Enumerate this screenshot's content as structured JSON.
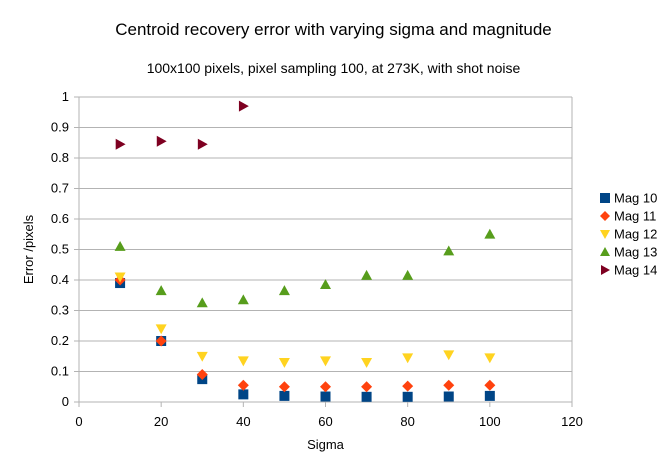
{
  "chart_data": {
    "type": "scatter",
    "title": "Centroid recovery error with varying sigma and magnitude",
    "subtitle": "100x100 pixels, pixel sampling 100, at 273K, with shot noise",
    "xlabel": "Sigma",
    "ylabel": "Error /pixels",
    "xlim": [
      0,
      120
    ],
    "ylim": [
      0,
      1
    ],
    "x_ticks": [
      "0",
      "20",
      "40",
      "60",
      "80",
      "100",
      "120"
    ],
    "y_ticks": [
      "0",
      "0.1",
      "0.2",
      "0.3",
      "0.4",
      "0.5",
      "0.6",
      "0.7",
      "0.8",
      "0.9",
      "1"
    ],
    "grid": "horizontal",
    "legend_position": "right",
    "series": [
      {
        "name": "Mag 10",
        "color": "#004586",
        "marker": "square",
        "x": [
          10,
          20,
          30,
          40,
          50,
          60,
          70,
          80,
          90,
          100
        ],
        "y": [
          0.39,
          0.2,
          0.075,
          0.025,
          0.02,
          0.018,
          0.017,
          0.017,
          0.018,
          0.02
        ]
      },
      {
        "name": "Mag 11",
        "color": "#ff420e",
        "marker": "diamond",
        "x": [
          10,
          20,
          30,
          40,
          50,
          60,
          70,
          80,
          90,
          100
        ],
        "y": [
          0.4,
          0.2,
          0.09,
          0.055,
          0.05,
          0.05,
          0.05,
          0.052,
          0.055,
          0.055
        ]
      },
      {
        "name": "Mag 12",
        "color": "#ffd320",
        "marker": "triangle-down",
        "x": [
          10,
          20,
          30,
          40,
          50,
          60,
          70,
          80,
          90,
          100
        ],
        "y": [
          0.41,
          0.24,
          0.15,
          0.135,
          0.13,
          0.135,
          0.13,
          0.145,
          0.155,
          0.145
        ]
      },
      {
        "name": "Mag 13",
        "color": "#579d1c",
        "marker": "triangle-up",
        "x": [
          10,
          20,
          30,
          40,
          50,
          60,
          70,
          80,
          90,
          100
        ],
        "y": [
          0.51,
          0.365,
          0.325,
          0.335,
          0.365,
          0.385,
          0.415,
          0.415,
          0.495,
          0.55
        ]
      },
      {
        "name": "Mag 14",
        "color": "#7e0021",
        "marker": "triangle-right",
        "x": [
          10,
          20,
          30,
          40
        ],
        "y": [
          0.845,
          0.855,
          0.845,
          0.97
        ]
      }
    ]
  }
}
